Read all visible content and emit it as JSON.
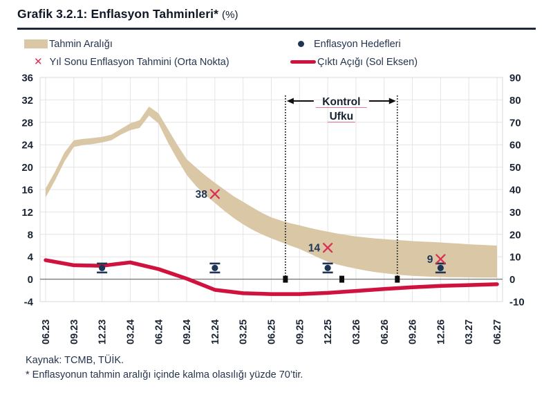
{
  "header": {
    "title": "Grafik 3.2.1: Enflasyon Tahminleri*",
    "title_suffix": "(%)"
  },
  "legend": {
    "items": [
      {
        "label": "Tahmin Aralığı",
        "marker": "band-swatch"
      },
      {
        "label": "Enflasyon Hedefleri",
        "marker": "dot"
      },
      {
        "label": "Yıl Sonu Enflasyon Tahmini (Orta Nokta)",
        "marker": "x-cross"
      },
      {
        "label": "Çıktı Açığı (Sol Eksen)",
        "marker": "line"
      }
    ]
  },
  "chart_data": {
    "type": "area",
    "title": "Grafik 3.2.1: Enflasyon Tahminleri* (%)",
    "x_tick_labels": [
      "06.23",
      "09.23",
      "12.23",
      "03.24",
      "06.24",
      "09.24",
      "12.24",
      "03.25",
      "06.25",
      "09.25",
      "12.25",
      "03.26",
      "06.26",
      "09.26",
      "12.26",
      "03.27",
      "06.27"
    ],
    "months_per_tick": 3,
    "total_months": 48,
    "left_axis": {
      "min": -4,
      "max": 36,
      "step": 4
    },
    "right_axis": {
      "min": -10,
      "max": 90,
      "step": 10
    },
    "grid": true,
    "band": {
      "name": "Tahmin Aralığı",
      "axis": "right",
      "points": [
        [
          0,
          36.5,
          40.5
        ],
        [
          1,
          44,
          48
        ],
        [
          2,
          52.5,
          56.5
        ],
        [
          3,
          59,
          62
        ],
        [
          4,
          59.8,
          62.6
        ],
        [
          5,
          60.3,
          63
        ],
        [
          6,
          61,
          63.5
        ],
        [
          7,
          62,
          64.5
        ],
        [
          8,
          64.5,
          67
        ],
        [
          9,
          66.5,
          69.5
        ],
        [
          10,
          67.5,
          71
        ],
        [
          11,
          73,
          77
        ],
        [
          12,
          69.5,
          74
        ],
        [
          13,
          61,
          67
        ],
        [
          14,
          53.5,
          60
        ],
        [
          15,
          46.5,
          53.5
        ],
        [
          16,
          41.5,
          49.8
        ],
        [
          17,
          37.5,
          46.2
        ],
        [
          18,
          34,
          43
        ],
        [
          19,
          30.5,
          40
        ],
        [
          20,
          27.3,
          37
        ],
        [
          21,
          24.5,
          34.5
        ],
        [
          22,
          22,
          32
        ],
        [
          23,
          20,
          29.6
        ],
        [
          24,
          18.2,
          27.6
        ],
        [
          25,
          16.6,
          26.2
        ],
        [
          26,
          15,
          25
        ],
        [
          27,
          13.5,
          24
        ],
        [
          28,
          11.6,
          23
        ],
        [
          29,
          9.6,
          22
        ],
        [
          30,
          7.8,
          21.2
        ],
        [
          31,
          6.6,
          20.4
        ],
        [
          32,
          5.6,
          19.7
        ],
        [
          33,
          4.7,
          19.1
        ],
        [
          34,
          3.9,
          18.6
        ],
        [
          35,
          3.2,
          18.2
        ],
        [
          36,
          2.7,
          17.9
        ],
        [
          37,
          2.2,
          17.6
        ],
        [
          38,
          1.8,
          17.3
        ],
        [
          39,
          1.5,
          17
        ],
        [
          40,
          1.3,
          16.8
        ],
        [
          41,
          1.1,
          16.6
        ],
        [
          42,
          1,
          16.4
        ],
        [
          43,
          0.9,
          16.1
        ],
        [
          44,
          0.85,
          15.9
        ],
        [
          45,
          0.8,
          15.6
        ],
        [
          46,
          0.75,
          15.4
        ],
        [
          47,
          0.7,
          15.2
        ],
        [
          48,
          0.7,
          15
        ]
      ]
    },
    "output_gap": {
      "name": "Çıktı Açığı (Sol Eksen)",
      "axis": "left",
      "points": [
        [
          0,
          3.4
        ],
        [
          3,
          2.5
        ],
        [
          6,
          2.4
        ],
        [
          9,
          3.0
        ],
        [
          12,
          1.8
        ],
        [
          15,
          0.1
        ],
        [
          18,
          -1.9
        ],
        [
          21,
          -2.5
        ],
        [
          24,
          -2.65
        ],
        [
          27,
          -2.65
        ],
        [
          30,
          -2.45
        ],
        [
          33,
          -2.1
        ],
        [
          36,
          -1.75
        ],
        [
          39,
          -1.45
        ],
        [
          42,
          -1.2
        ],
        [
          45,
          -1.05
        ],
        [
          48,
          -0.9
        ]
      ]
    },
    "inflation_targets": {
      "name": "Enflasyon Hedefleri",
      "axis": "right",
      "whisker": 2,
      "points": [
        [
          6,
          5
        ],
        [
          18,
          5
        ],
        [
          30,
          5
        ],
        [
          42,
          5
        ]
      ]
    },
    "yearend_forecasts": {
      "name": "Yıl Sonu Enflasyon Tahmini (Orta Nokta)",
      "axis": "right",
      "points": [
        [
          18,
          38
        ],
        [
          30,
          14
        ],
        [
          42,
          9
        ]
      ]
    },
    "control_horizon": {
      "label_line1": "Kontrol",
      "label_line2": "Ufku",
      "start_month": 25.5,
      "end_month": 37.4,
      "zero_line_markers": [
        25.5,
        31.5,
        37.4
      ]
    },
    "colors": {
      "band": "#d9c7a6",
      "output_gap": "#d0123e",
      "forecast_x": "#dc2f55",
      "navy": "#1f3555",
      "grid": "#e4e4e4",
      "border": "#d8d8d8",
      "zero_line": "#7d7d7d",
      "text": "#1a2433"
    }
  },
  "footer": {
    "source": "Kaynak: TCMB, TÜİK.",
    "footnote": "* Enflasyonun tahmin aralığı içinde kalma olasılığı yüzde 70’tir."
  }
}
